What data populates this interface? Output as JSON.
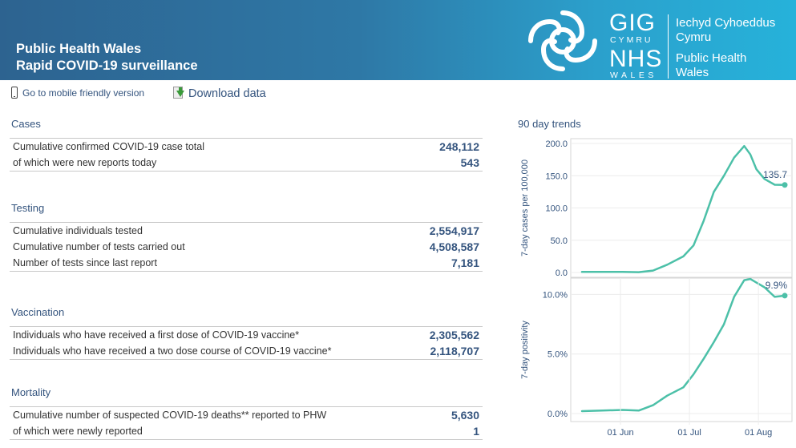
{
  "header": {
    "title_line1": "Public Health Wales",
    "title_line2": "Rapid COVID-19 surveillance",
    "logo": {
      "gig": "GIG",
      "cymru": "CYMRU",
      "nhs": "NHS",
      "wales": "WALES",
      "welsh_line1": "Iechyd Cyhoeddus",
      "welsh_line2": "Cymru",
      "english_line1": "Public Health",
      "english_line2": "Wales"
    }
  },
  "toolbar": {
    "mobile_label": "Go to mobile friendly version",
    "download_label": "Download data"
  },
  "sections": {
    "cases": {
      "title": "Cases",
      "rows": [
        {
          "label": "Cumulative confirmed COVID-19 case total",
          "value": "248,112"
        },
        {
          "label": "of which were new reports today",
          "value": "543"
        }
      ]
    },
    "testing": {
      "title": "Testing",
      "rows": [
        {
          "label": "Cumulative individuals tested",
          "value": "2,554,917"
        },
        {
          "label": "Cumulative number of tests carried out",
          "value": "4,508,587"
        },
        {
          "label": "Number of tests since last report",
          "value": "7,181"
        }
      ]
    },
    "vaccination": {
      "title": "Vaccination",
      "rows": [
        {
          "label": "Individuals who have received a first dose of COVID-19 vaccine*",
          "value": "2,305,562"
        },
        {
          "label": "Individuals who have received a two dose course of COVID-19 vaccine*",
          "value": "2,118,707"
        }
      ]
    },
    "mortality": {
      "title": "Mortality",
      "rows": [
        {
          "label": "Cumulative number of suspected COVID-19 deaths** reported to PHW",
          "value": "5,630"
        },
        {
          "label": "of which were newly reported",
          "value": "1"
        }
      ]
    }
  },
  "trends": {
    "title": "90 day trends"
  },
  "colors": {
    "accent": "#34547e",
    "line": "#4cc0a8",
    "banner_left": "#2d6390",
    "banner_right": "#26b2da"
  },
  "chart_data": [
    {
      "type": "line",
      "title": "",
      "ylabel": "7-day cases per 100,000",
      "ylim": [
        0,
        200
      ],
      "yticks": [
        "0.0",
        "50.0",
        "100.0",
        "150.0",
        "200.0"
      ],
      "ytick_values": [
        0,
        50,
        100,
        150,
        200
      ],
      "end_label": "135.7",
      "x": [
        0,
        10,
        20,
        28,
        35,
        42,
        50,
        55,
        60,
        65,
        70,
        75,
        80,
        83,
        86,
        90,
        95,
        100
      ],
      "values": [
        1,
        1,
        1,
        0.5,
        3,
        12,
        25,
        42,
        80,
        125,
        150,
        178,
        196,
        183,
        160,
        145,
        136,
        135.7
      ],
      "grid": true
    },
    {
      "type": "line",
      "title": "",
      "ylabel": "7-day positivity",
      "ylim": [
        0,
        10.5
      ],
      "yticks": [
        "0.0%",
        "5.0%",
        "10.0%"
      ],
      "ytick_values": [
        0,
        5,
        10
      ],
      "end_label": "9.9%",
      "x": [
        0,
        10,
        20,
        28,
        35,
        42,
        50,
        55,
        60,
        65,
        70,
        75,
        80,
        83,
        86,
        90,
        95,
        100
      ],
      "values": [
        0.2,
        0.25,
        0.3,
        0.25,
        0.7,
        1.5,
        2.2,
        3.3,
        4.6,
        6.0,
        7.5,
        9.8,
        11.2,
        11.3,
        11.0,
        10.6,
        9.8,
        9.9
      ],
      "grid": true
    }
  ],
  "x_axis": {
    "ticks": [
      "01 Jun",
      "01 Jul",
      "01 Aug"
    ],
    "tick_positions": [
      19,
      53,
      87
    ]
  }
}
